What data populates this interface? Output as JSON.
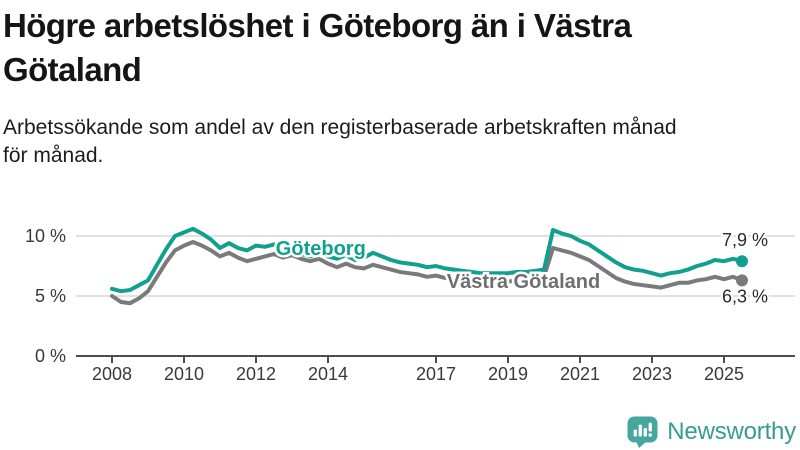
{
  "header": {
    "title_lines": [
      "Högre arbetslöshet i Göteborg än i Västra",
      "Götaland"
    ],
    "subtitle_lines": [
      "Arbetssökande som andel av den registerbaserade arbetskraften månad",
      "för månad."
    ]
  },
  "chart_data": {
    "type": "line",
    "title": "Högre arbetslöshet i Göteborg än i Västra Götaland",
    "subtitle": "Arbetssökande som andel av den registerbaserade arbetskraften månad för månad.",
    "unit": "%",
    "grid": "horizontal",
    "legend_position": "inline-line-labels",
    "x_start": 2008.0,
    "x_step": 0.25,
    "x_end": 2025.5,
    "xticks": [
      2008,
      2010,
      2012,
      2014,
      2017,
      2019,
      2021,
      2023,
      2025
    ],
    "yticks": [
      {
        "value": 0,
        "label": "0 %"
      },
      {
        "value": 5,
        "label": "5 %"
      },
      {
        "value": 10,
        "label": "10 %"
      }
    ],
    "ylim": [
      0,
      11.7
    ],
    "series": [
      {
        "name": "Göteborg",
        "color": "#12A08E",
        "label_color": "#12A08E",
        "end_label": "7,9 %",
        "end_value": 7.9,
        "label_pos": {
          "year": 2012.55,
          "value": 8.4
        },
        "values": [
          5.6,
          5.4,
          5.5,
          5.9,
          6.3,
          7.6,
          8.9,
          10.0,
          10.3,
          10.6,
          10.2,
          9.7,
          9.0,
          9.4,
          9.0,
          8.8,
          9.2,
          9.1,
          9.3,
          8.9,
          9.2,
          8.5,
          8.3,
          8.6,
          8.3,
          8.1,
          8.4,
          8.0,
          8.2,
          8.6,
          8.3,
          8.0,
          7.8,
          7.7,
          7.6,
          7.4,
          7.5,
          7.3,
          7.2,
          7.1,
          7.0,
          6.9,
          6.9,
          6.9,
          6.9,
          7.0,
          7.0,
          7.1,
          7.2,
          10.5,
          10.2,
          10.0,
          9.6,
          9.3,
          8.8,
          8.3,
          7.8,
          7.4,
          7.2,
          7.1,
          6.9,
          6.7,
          6.9,
          7.0,
          7.2,
          7.5,
          7.7,
          8.0,
          7.9,
          8.1,
          7.9
        ]
      },
      {
        "name": "Västra Götaland",
        "color": "#7A7A7A",
        "label_color": "#6F6F6F",
        "end_label": "6,3 %",
        "end_value": 6.3,
        "label_pos": {
          "year": 2017.3,
          "value": 5.65
        },
        "values": [
          5.0,
          4.5,
          4.4,
          4.8,
          5.4,
          6.6,
          7.8,
          8.8,
          9.2,
          9.5,
          9.2,
          8.8,
          8.3,
          8.6,
          8.2,
          7.9,
          8.1,
          8.3,
          8.5,
          8.2,
          8.4,
          8.1,
          7.9,
          8.1,
          7.7,
          7.4,
          7.7,
          7.4,
          7.3,
          7.6,
          7.4,
          7.2,
          7.0,
          6.9,
          6.8,
          6.6,
          6.7,
          6.5,
          6.4,
          6.3,
          6.3,
          6.2,
          6.2,
          6.2,
          6.2,
          6.3,
          6.4,
          6.5,
          6.6,
          9.0,
          8.8,
          8.6,
          8.3,
          8.0,
          7.5,
          7.0,
          6.5,
          6.2,
          6.0,
          5.9,
          5.8,
          5.7,
          5.9,
          6.1,
          6.1,
          6.3,
          6.4,
          6.6,
          6.4,
          6.6,
          6.3
        ]
      }
    ]
  },
  "colors": {
    "accent": "#12A08E",
    "gray": "#7A7A7A",
    "grid": "#D9D9D9",
    "axis": "#4D4D4D",
    "axis_text": "#3A3A3A",
    "value_text": "#2B2B2B",
    "logo": "#46A79F",
    "brand_text": "#379B94"
  },
  "footer": {
    "brand": "Newsworthy",
    "logo_icon": "bar-chart-speech-bubble-icon"
  }
}
